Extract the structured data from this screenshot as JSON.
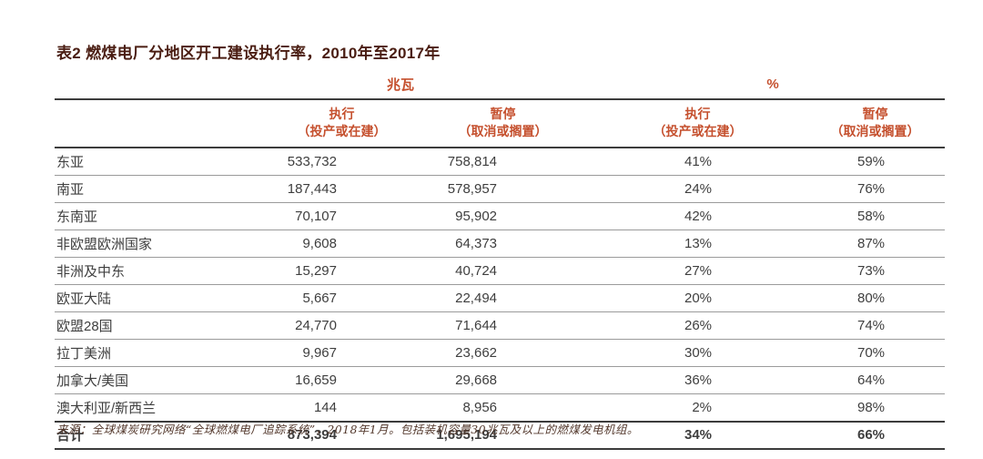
{
  "title": "表2 燃煤电厂分地区开工建设执行率，2010年至2017年",
  "table": {
    "groups": {
      "mw": "兆瓦",
      "pct": "%"
    },
    "headers": {
      "active": {
        "line1": "执行",
        "line2": "（投产或在建）"
      },
      "halted": {
        "line1": "暂停",
        "line2": "（取消或搁置）"
      }
    },
    "rows": [
      {
        "region": "东亚",
        "mw_active": "533,732",
        "mw_halted": "758,814",
        "pct_active": "41%",
        "pct_halted": "59%"
      },
      {
        "region": "南亚",
        "mw_active": "187,443",
        "mw_halted": "578,957",
        "pct_active": "24%",
        "pct_halted": "76%"
      },
      {
        "region": "东南亚",
        "mw_active": "70,107",
        "mw_halted": "95,902",
        "pct_active": "42%",
        "pct_halted": "58%"
      },
      {
        "region": "非欧盟欧洲国家",
        "mw_active": "9,608",
        "mw_halted": "64,373",
        "pct_active": "13%",
        "pct_halted": "87%"
      },
      {
        "region": "非洲及中东",
        "mw_active": "15,297",
        "mw_halted": "40,724",
        "pct_active": "27%",
        "pct_halted": "73%"
      },
      {
        "region": "欧亚大陆",
        "mw_active": "5,667",
        "mw_halted": "22,494",
        "pct_active": "20%",
        "pct_halted": "80%"
      },
      {
        "region": "欧盟28国",
        "mw_active": "24,770",
        "mw_halted": "71,644",
        "pct_active": "26%",
        "pct_halted": "74%"
      },
      {
        "region": "拉丁美洲",
        "mw_active": "9,967",
        "mw_halted": "23,662",
        "pct_active": "30%",
        "pct_halted": "70%"
      },
      {
        "region": "加拿大/美国",
        "mw_active": "16,659",
        "mw_halted": "29,668",
        "pct_active": "36%",
        "pct_halted": "64%"
      },
      {
        "region": "澳大利亚/新西兰",
        "mw_active": "144",
        "mw_halted": "8,956",
        "pct_active": "2%",
        "pct_halted": "98%"
      }
    ],
    "total": {
      "region": "合计",
      "mw_active": "873,394",
      "mw_halted": "1,695,194",
      "pct_active": "34%",
      "pct_halted": "66%"
    }
  },
  "footer": "来源：全球煤炭研究网络“全球燃煤电厂追踪系统”，2018年1月。包括装机容量30兆瓦及以上的燃煤发电机组。",
  "colors": {
    "accent_orange": "#c5502e",
    "title_maroon": "#4a1d12",
    "rule_dark": "#3c3c3c",
    "rule_light": "#9b9b9b",
    "body_text": "#3e3e3e",
    "footer_text": "#53382c",
    "background": "#ffffff"
  }
}
